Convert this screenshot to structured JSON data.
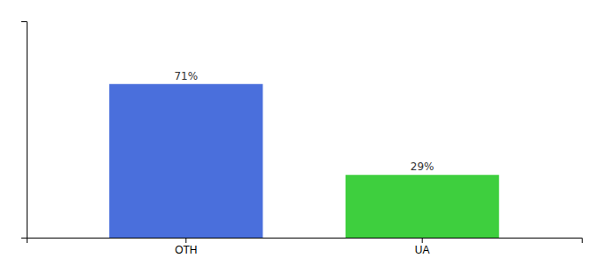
{
  "chart_data": {
    "type": "bar",
    "categories": [
      "OTH",
      "UA"
    ],
    "values": [
      71,
      29
    ],
    "colors": [
      "#4a6fdc",
      "#3ecf3e"
    ],
    "value_labels": [
      "71%",
      "29%"
    ],
    "data_labels": true,
    "ylim": [
      0,
      100
    ],
    "tick_labels": "x"
  }
}
